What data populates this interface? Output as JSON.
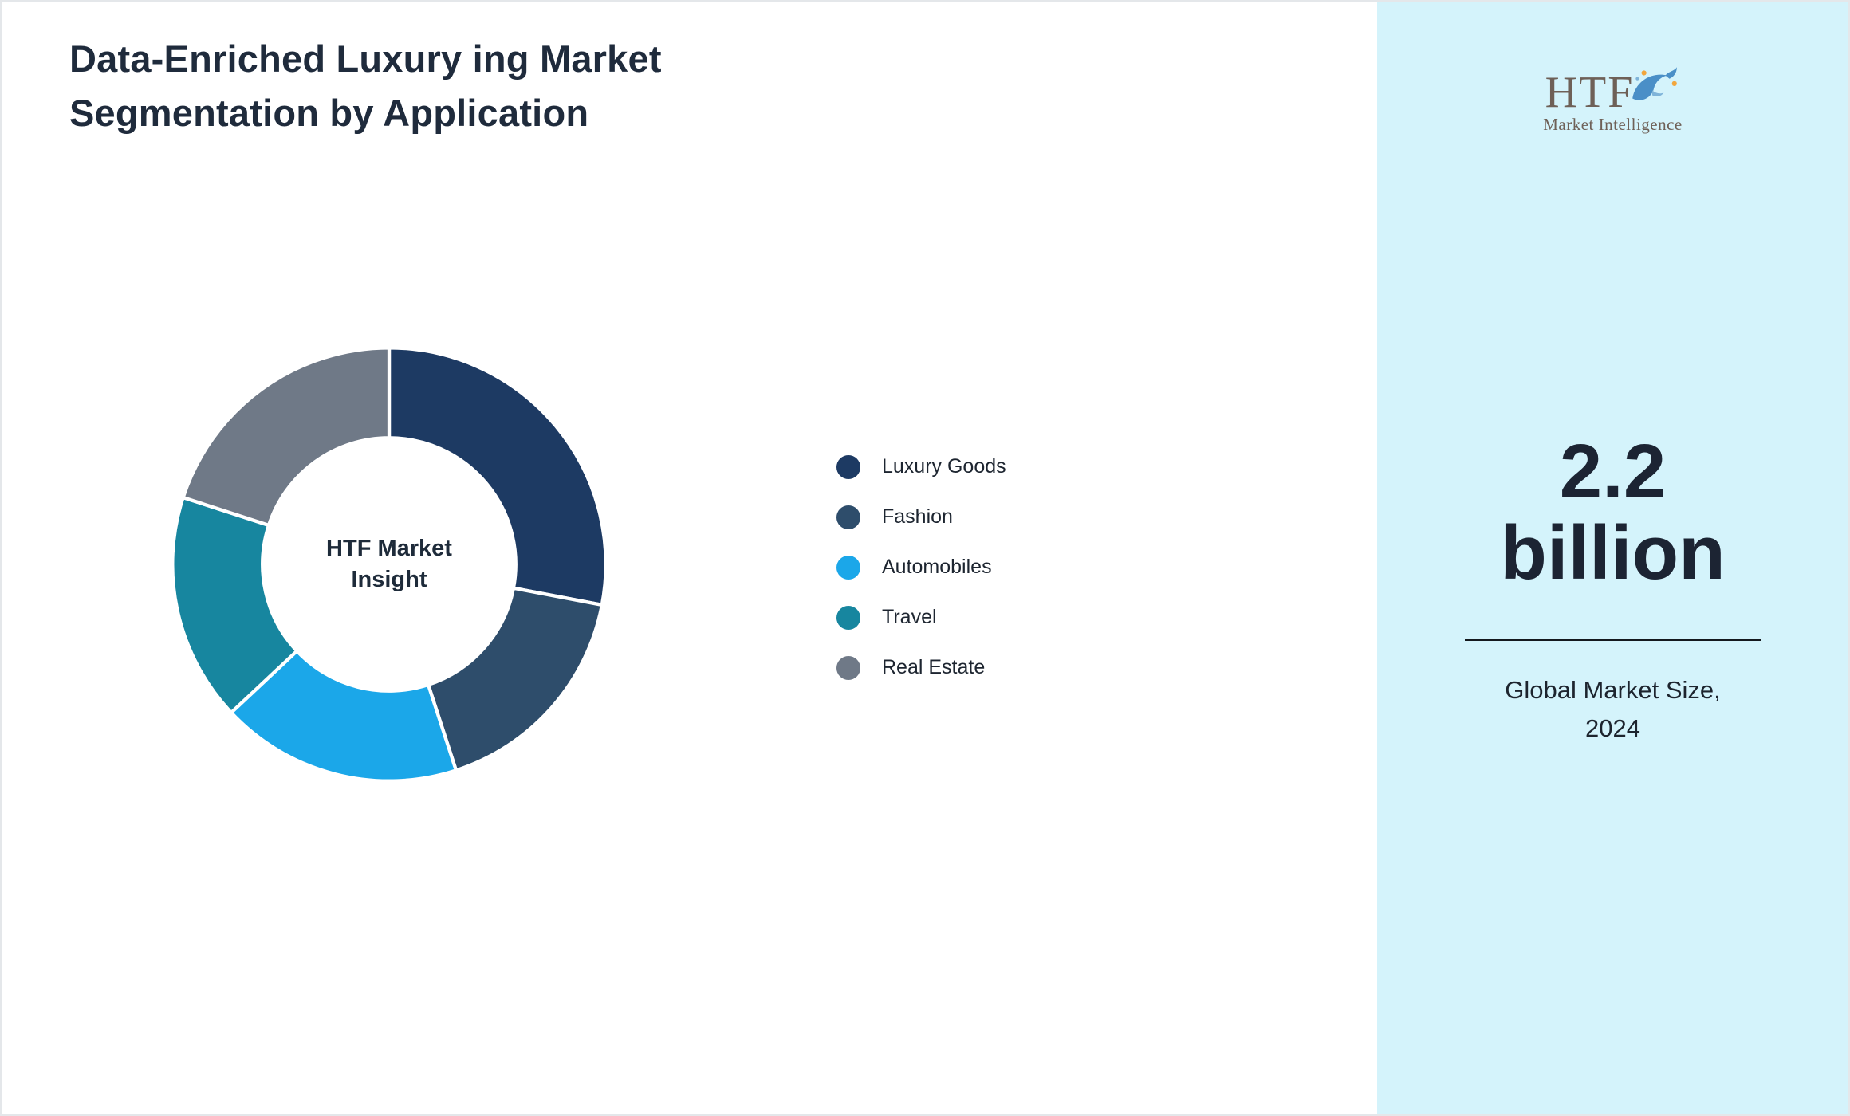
{
  "page": {
    "title_line1": "Data-Enriched Luxury ing Market",
    "title_line2": "Segmentation by Application"
  },
  "chart_data": {
    "type": "pie",
    "subtype": "donut",
    "title": "Data-Enriched Luxury ing Market Segmentation by Application",
    "center_label": "HTF Market Insight",
    "center_label_line1": "HTF Market",
    "center_label_line2": "Insight",
    "legend_position": "right",
    "start_angle_deg": 0,
    "direction": "clockwise",
    "units": "percent (estimated from arc angles)",
    "segments": [
      {
        "label": "Luxury Goods",
        "value": 28,
        "color": "#1d3a63"
      },
      {
        "label": "Fashion",
        "value": 17,
        "color": "#2e4d6b"
      },
      {
        "label": "Automobiles",
        "value": 18,
        "color": "#1ba7e9"
      },
      {
        "label": "Travel",
        "value": 17,
        "color": "#17869f"
      },
      {
        "label": "Real Estate",
        "value": 20,
        "color": "#6f7987"
      }
    ],
    "gap_color": "#ffffff"
  },
  "sidebar": {
    "background": "#d4f3fb",
    "logo_text": "HTF",
    "logo_subtext": "Market Intelligence",
    "dolphin_icon": "dolphin-icon",
    "market_size_line1": "2.2",
    "market_size_line2": "billion",
    "caption_line1": "Global Market Size,",
    "caption_line2": "2024"
  }
}
